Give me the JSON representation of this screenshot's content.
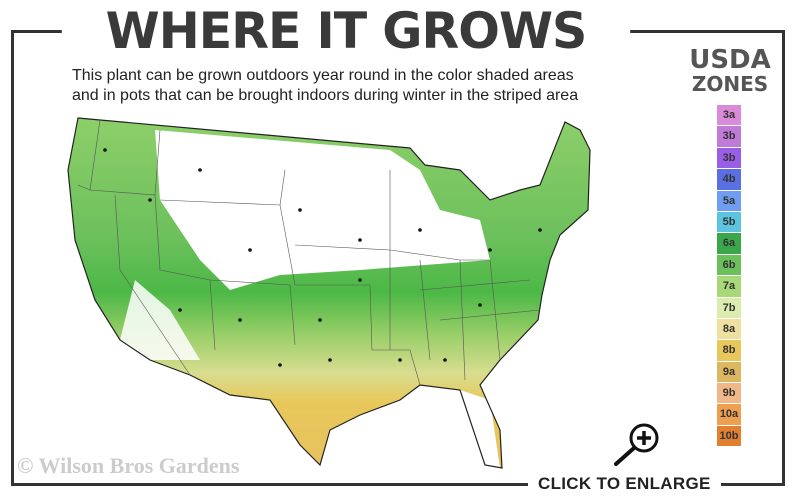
{
  "header": {
    "title": "WHERE IT GROWS",
    "subtitle_line1": "This plant can be grown outdoors year round in the color shaded areas",
    "subtitle_line2": "and in pots that can be brought indoors during winter in the striped area"
  },
  "legend": {
    "title_line1": "USDA",
    "title_line2": "ZONES",
    "zones": [
      {
        "label": "3a",
        "color": "#d98ad9"
      },
      {
        "label": "3b",
        "color": "#c07ad8"
      },
      {
        "label": "3b",
        "color": "#9a5ee6"
      },
      {
        "label": "4b",
        "color": "#5a6fe0"
      },
      {
        "label": "5a",
        "color": "#6f9ef0"
      },
      {
        "label": "5b",
        "color": "#5cc4de"
      },
      {
        "label": "6a",
        "color": "#3aa84a"
      },
      {
        "label": "6b",
        "color": "#6cc05c"
      },
      {
        "label": "7a",
        "color": "#a8d878"
      },
      {
        "label": "7b",
        "color": "#dcecb0"
      },
      {
        "label": "8a",
        "color": "#efe0a0"
      },
      {
        "label": "8b",
        "color": "#e8c85a"
      },
      {
        "label": "9a",
        "color": "#dcb660"
      },
      {
        "label": "9b",
        "color": "#f0b888"
      },
      {
        "label": "10a",
        "color": "#eea050"
      },
      {
        "label": "10b",
        "color": "#e08030"
      }
    ]
  },
  "map": {
    "icon": "usa-hardiness-map",
    "colors": {
      "green": "#5cbf4a",
      "light_green": "#a8d878",
      "yellow": "#e8c85a",
      "unshaded": "#ffffff"
    }
  },
  "footer": {
    "copyright": "© Wilson Bros Gardens",
    "enlarge_label": "CLICK TO ENLARGE",
    "enlarge_icon": "zoom-in-icon"
  }
}
